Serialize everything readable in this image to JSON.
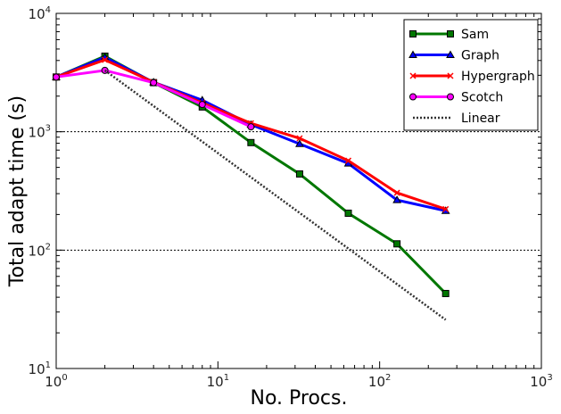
{
  "chart_data": {
    "type": "line",
    "title": "",
    "xlabel": "No. Procs.",
    "ylabel": "Total adapt time (s)",
    "xscale": "log",
    "yscale": "log",
    "xlim": [
      1,
      1000
    ],
    "ylim": [
      10,
      10000
    ],
    "xticks": [
      {
        "v": 1,
        "b": "10",
        "e": "0"
      },
      {
        "v": 10,
        "b": "10",
        "e": "1"
      },
      {
        "v": 100,
        "b": "10",
        "e": "2"
      },
      {
        "v": 1000,
        "b": "10",
        "e": "3"
      }
    ],
    "yticks": [
      {
        "v": 10,
        "b": "10",
        "e": "1"
      },
      {
        "v": 100,
        "b": "10",
        "e": "2"
      },
      {
        "v": 1000,
        "b": "10",
        "e": "3"
      },
      {
        "v": 10000,
        "b": "10",
        "e": "4"
      }
    ],
    "grid": "horizontal dotted at 100 and 1000",
    "legend": "top-right",
    "series": [
      {
        "name": "Sam",
        "color": "#007700",
        "marker": "square",
        "dash": "",
        "x": [
          1,
          2,
          4,
          8,
          16,
          32,
          64,
          128,
          256
        ],
        "y": [
          2900,
          4350,
          2600,
          1620,
          810,
          440,
          205,
          113,
          43
        ]
      },
      {
        "name": "Graph",
        "color": "#0000ff",
        "marker": "triangle",
        "dash": "",
        "x": [
          1,
          2,
          4,
          8,
          16,
          32,
          64,
          128,
          256
        ],
        "y": [
          2900,
          4250,
          2620,
          1850,
          1150,
          790,
          540,
          265,
          215
        ]
      },
      {
        "name": "Hypergraph",
        "color": "#ff0000",
        "marker": "x",
        "dash": "",
        "x": [
          1,
          2,
          4,
          8,
          16,
          32,
          64,
          128,
          256
        ],
        "y": [
          2900,
          4050,
          2620,
          1750,
          1180,
          880,
          570,
          305,
          222
        ]
      },
      {
        "name": "Scotch",
        "color": "#ff00ff",
        "marker": "circle",
        "dash": "",
        "x": [
          1,
          2,
          4,
          8,
          16
        ],
        "y": [
          2900,
          3300,
          2600,
          1700,
          1100
        ]
      },
      {
        "name": "Linear",
        "color": "#333333",
        "marker": "none",
        "dash": "2,2",
        "x": [
          2,
          256
        ],
        "y": [
          3300,
          25.8
        ]
      }
    ]
  }
}
